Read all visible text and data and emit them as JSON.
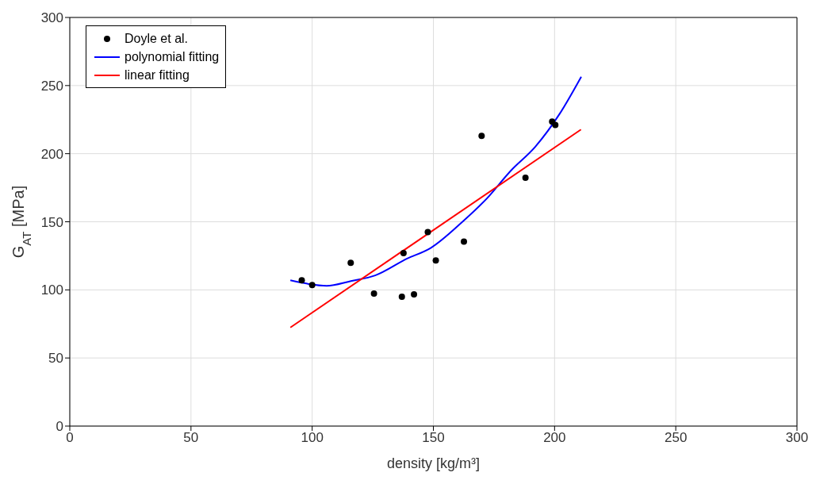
{
  "chart_data": {
    "type": "scatter",
    "xlabel": "density [kg/m³]",
    "ylabel": "G$_{AT}$ [MPa]",
    "xlim": [
      0,
      300
    ],
    "xticks": [
      0,
      50,
      100,
      150,
      200,
      250,
      300
    ],
    "ylim": [
      0,
      300
    ],
    "yticks": [
      0,
      50,
      100,
      150,
      200,
      250,
      300
    ],
    "grid": true,
    "legend": "top left",
    "series": [
      {
        "name": "Doyle et al.",
        "marker": "circle",
        "color": "#000000",
        "x": [
          95.7,
          100,
          115.9,
          125.5,
          137,
          137.7,
          142,
          147.7,
          151,
          162.6,
          169.9,
          188,
          199,
          200.3
        ],
        "values": [
          107,
          103.6,
          119.9,
          97.3,
          95,
          127,
          96.7,
          142.4,
          121.6,
          135.5,
          213,
          182.4,
          223.5,
          221
        ]
      },
      {
        "name": "polynomial fitting",
        "type": "line",
        "color": "#0000ff",
        "x": [
          91,
          98,
          106,
          116,
          126,
          139,
          149,
          162,
          172,
          182,
          192,
          202,
          211
        ],
        "values": [
          107,
          104.5,
          103,
          106.5,
          110.6,
          122.8,
          130.9,
          150,
          167,
          187.6,
          205,
          229,
          256.5
        ]
      },
      {
        "name": "linear fitting",
        "type": "line",
        "color": "#ff0000",
        "x": [
          91,
          210.9
        ],
        "values": [
          72.4,
          217.7
        ]
      }
    ]
  }
}
